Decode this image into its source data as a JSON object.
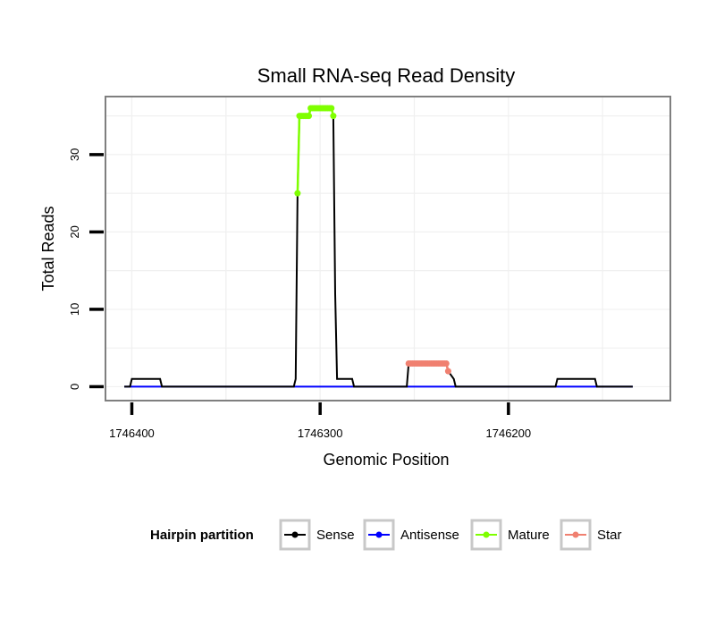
{
  "chart_data": {
    "type": "line",
    "title": "Small RNA-seq Read Density",
    "xlabel": "Genomic Position",
    "ylabel": "Total Reads",
    "x_reversed": true,
    "xlim": [
      1746414,
      1746114
    ],
    "ylim": [
      -1.8,
      37.5
    ],
    "x_ticks": [
      1746400,
      1746300,
      1746200
    ],
    "x_tick_labels": [
      "1746400",
      "1746300",
      "1746200"
    ],
    "y_ticks": [
      0,
      10,
      20,
      30
    ],
    "y_tick_labels": [
      "0",
      "10",
      "20",
      "30"
    ],
    "grid": true,
    "legend": {
      "title": "Hairpin partition",
      "position": "bottom",
      "entries": [
        {
          "label": "Sense",
          "color": "#000000"
        },
        {
          "label": "Antisense",
          "color": "#0000ff"
        },
        {
          "label": "Mature",
          "color": "#7fff00"
        },
        {
          "label": "Star",
          "color": "#f08070"
        }
      ]
    },
    "series": [
      {
        "name": "Sense",
        "color": "#000000",
        "x": [
          1746404,
          1746401,
          1746400,
          1746385,
          1746384,
          1746314,
          1746313,
          1746312,
          1746311,
          1746306,
          1746305,
          1746299,
          1746294,
          1746293,
          1746292,
          1746291,
          1746283,
          1746282,
          1746277,
          1746276,
          1746254,
          1746253,
          1746233,
          1746232,
          1746229,
          1746228,
          1746204,
          1746203,
          1746180,
          1746179,
          1746175,
          1746174,
          1746154,
          1746153,
          1746134
        ],
        "y": [
          0,
          0,
          1,
          1,
          0,
          0,
          1,
          25,
          35,
          35,
          36,
          36,
          36,
          35,
          12,
          1,
          1,
          0,
          0,
          0,
          0,
          3,
          3,
          2,
          1,
          0,
          0,
          0,
          0,
          0,
          0,
          1,
          1,
          0,
          0
        ]
      },
      {
        "name": "Antisense",
        "color": "#0000ff",
        "x": [
          1746404,
          1746134
        ],
        "y": [
          0,
          0
        ]
      },
      {
        "name": "Mature",
        "color": "#7fff00",
        "x": [
          1746312,
          1746311,
          1746310,
          1746309,
          1746308,
          1746307,
          1746306,
          1746305,
          1746304,
          1746303,
          1746302,
          1746301,
          1746300,
          1746299,
          1746298,
          1746297,
          1746296,
          1746295,
          1746294,
          1746293
        ],
        "y": [
          25,
          35,
          35,
          35,
          35,
          35,
          35,
          36,
          36,
          36,
          36,
          36,
          36,
          36,
          36,
          36,
          36,
          36,
          36,
          35
        ]
      },
      {
        "name": "Star",
        "color": "#f08070",
        "x": [
          1746253,
          1746252,
          1746251,
          1746250,
          1746249,
          1746248,
          1746247,
          1746246,
          1746245,
          1746244,
          1746243,
          1746242,
          1746241,
          1746240,
          1746239,
          1746238,
          1746237,
          1746236,
          1746235,
          1746234,
          1746233,
          1746232
        ],
        "y": [
          3,
          3,
          3,
          3,
          3,
          3,
          3,
          3,
          3,
          3,
          3,
          3,
          3,
          3,
          3,
          3,
          3,
          3,
          3,
          3,
          3,
          2
        ]
      }
    ]
  }
}
